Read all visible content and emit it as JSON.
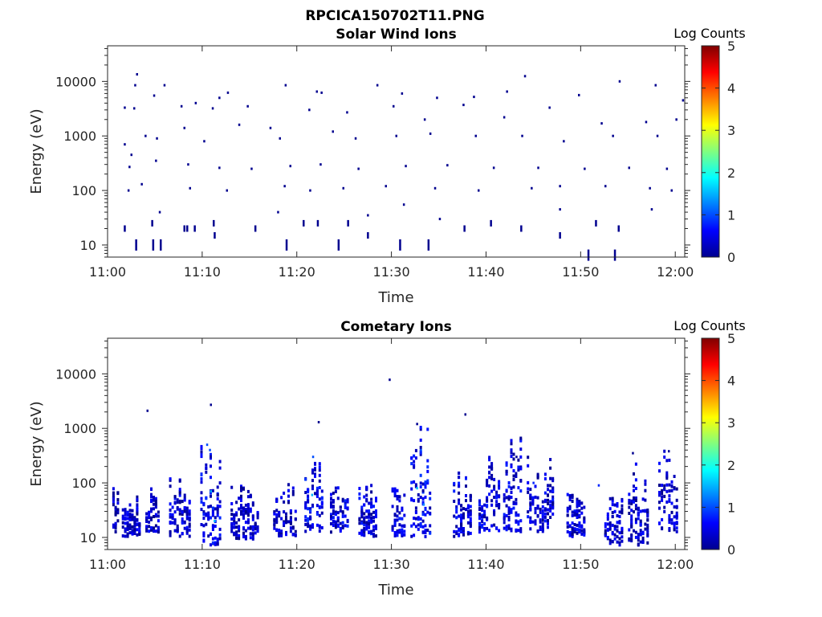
{
  "figure_title": "RPCICA150702T11.PNG",
  "colors": {
    "axis": "#262626",
    "dark_blue": "#00008f",
    "colormap": [
      "#00008f",
      "#0000ff",
      "#0080ff",
      "#00ffff",
      "#80ff80",
      "#ffff00",
      "#ff8000",
      "#ff0000",
      "#800000"
    ]
  },
  "chart_data": [
    {
      "type": "heatmap",
      "title": "Solar Wind Ions",
      "xlabel": "Time",
      "ylabel": "Energy (eV)",
      "x_ticks": [
        "11:00",
        "11:10",
        "11:20",
        "11:30",
        "11:40",
        "11:50",
        "12:00"
      ],
      "x_tick_minutes": [
        0,
        10,
        20,
        30,
        40,
        50,
        60
      ],
      "xlim_minutes": [
        0,
        61
      ],
      "y_scale": "log",
      "y_ticks": [
        "10",
        "100",
        "1000",
        "10000"
      ],
      "y_tick_values": [
        10,
        100,
        1000,
        10000
      ],
      "ylim": [
        6,
        45000
      ],
      "colorbar": {
        "label": "Log Counts",
        "range": [
          0,
          5
        ],
        "ticks": [
          "0",
          "1",
          "2",
          "3",
          "4",
          "5"
        ]
      },
      "points": [
        [
          3.1,
          13500,
          0
        ],
        [
          2.9,
          8500,
          0
        ],
        [
          6.0,
          8500,
          0
        ],
        [
          4.9,
          5500,
          0
        ],
        [
          9.3,
          4000,
          0
        ],
        [
          11.8,
          5000,
          0
        ],
        [
          12.7,
          6200,
          0
        ],
        [
          18.8,
          8500,
          0
        ],
        [
          22.1,
          6500,
          0
        ],
        [
          22.6,
          6200,
          0
        ],
        [
          28.5,
          8500,
          0
        ],
        [
          31.1,
          6000,
          0
        ],
        [
          34.8,
          5000,
          0
        ],
        [
          38.7,
          5200,
          0
        ],
        [
          42.2,
          6500,
          0
        ],
        [
          44.1,
          12500,
          0
        ],
        [
          49.8,
          5600,
          0
        ],
        [
          54.1,
          10000,
          0
        ],
        [
          57.9,
          8500,
          0
        ],
        [
          60.8,
          4500,
          0
        ],
        [
          1.8,
          3300,
          0
        ],
        [
          2.8,
          3200,
          0
        ],
        [
          4.0,
          1000,
          0
        ],
        [
          7.8,
          3500,
          0
        ],
        [
          11.1,
          3200,
          0
        ],
        [
          14.8,
          3500,
          0
        ],
        [
          17.2,
          1400,
          0
        ],
        [
          21.3,
          3000,
          0
        ],
        [
          25.3,
          2700,
          0
        ],
        [
          30.2,
          3500,
          0
        ],
        [
          33.5,
          2000,
          0
        ],
        [
          37.6,
          3700,
          0
        ],
        [
          41.9,
          2200,
          0
        ],
        [
          46.7,
          3300,
          0
        ],
        [
          52.2,
          1700,
          0
        ],
        [
          56.9,
          1800,
          0
        ],
        [
          60.1,
          2000,
          0
        ],
        [
          1.8,
          700,
          0
        ],
        [
          2.5,
          450,
          0
        ],
        [
          5.2,
          900,
          0
        ],
        [
          8.1,
          1400,
          0
        ],
        [
          10.2,
          800,
          0
        ],
        [
          13.9,
          1600,
          0
        ],
        [
          18.2,
          900,
          0
        ],
        [
          23.8,
          1200,
          0
        ],
        [
          26.2,
          900,
          0
        ],
        [
          30.5,
          1000,
          0
        ],
        [
          34.1,
          1100,
          0
        ],
        [
          38.9,
          1000,
          0
        ],
        [
          43.8,
          1000,
          0
        ],
        [
          48.2,
          800,
          0
        ],
        [
          53.4,
          1000,
          0
        ],
        [
          58.1,
          1000,
          0
        ],
        [
          2.3,
          270,
          0
        ],
        [
          5.1,
          350,
          0
        ],
        [
          8.5,
          300,
          0
        ],
        [
          11.8,
          260,
          0
        ],
        [
          15.2,
          250,
          0
        ],
        [
          19.3,
          280,
          0
        ],
        [
          22.5,
          300,
          0
        ],
        [
          26.5,
          250,
          0
        ],
        [
          31.5,
          280,
          0
        ],
        [
          35.9,
          290,
          0
        ],
        [
          40.8,
          260,
          0
        ],
        [
          45.5,
          260,
          0
        ],
        [
          50.4,
          250,
          0
        ],
        [
          55.1,
          260,
          0
        ],
        [
          59.1,
          250,
          0
        ],
        [
          2.2,
          100,
          0
        ],
        [
          3.6,
          130,
          0
        ],
        [
          8.7,
          110,
          0
        ],
        [
          12.6,
          100,
          0
        ],
        [
          18.7,
          120,
          0
        ],
        [
          21.4,
          100,
          0
        ],
        [
          24.9,
          110,
          0
        ],
        [
          29.4,
          120,
          0
        ],
        [
          34.6,
          110,
          0
        ],
        [
          39.2,
          100,
          0
        ],
        [
          44.8,
          110,
          0
        ],
        [
          47.8,
          120,
          0
        ],
        [
          52.6,
          120,
          0
        ],
        [
          57.3,
          110,
          0
        ],
        [
          59.6,
          100,
          0
        ],
        [
          1.8,
          20,
          0
        ],
        [
          4.7,
          25,
          0
        ],
        [
          5.5,
          40,
          0
        ],
        [
          8.1,
          20,
          0
        ],
        [
          8.4,
          20,
          0
        ],
        [
          9.2,
          20,
          0
        ],
        [
          11.2,
          25,
          0
        ],
        [
          15.6,
          20,
          0
        ],
        [
          18.0,
          40,
          0
        ],
        [
          20.7,
          25,
          0
        ],
        [
          22.2,
          25,
          0
        ],
        [
          25.4,
          25,
          0
        ],
        [
          27.5,
          35,
          0
        ],
        [
          31.3,
          55,
          0
        ],
        [
          35.1,
          30,
          0
        ],
        [
          37.7,
          20,
          0
        ],
        [
          40.5,
          25,
          0
        ],
        [
          43.7,
          20,
          0
        ],
        [
          47.8,
          45,
          0
        ],
        [
          51.6,
          25,
          0
        ],
        [
          54.0,
          20,
          0
        ],
        [
          57.5,
          45,
          0
        ],
        [
          3.0,
          10,
          0
        ],
        [
          4.8,
          10,
          0
        ],
        [
          5.6,
          10,
          0
        ],
        [
          11.3,
          15,
          0
        ],
        [
          18.9,
          10,
          0
        ],
        [
          24.4,
          10,
          0
        ],
        [
          27.5,
          15,
          0
        ],
        [
          30.9,
          10,
          0
        ],
        [
          33.9,
          10,
          0
        ],
        [
          47.8,
          15,
          0
        ],
        [
          50.8,
          6.5,
          0
        ],
        [
          53.6,
          6.5,
          0
        ]
      ]
    },
    {
      "type": "heatmap",
      "title": "Cometary Ions",
      "xlabel": "Time",
      "ylabel": "Energy (eV)",
      "x_ticks": [
        "11:00",
        "11:10",
        "11:20",
        "11:30",
        "11:40",
        "11:50",
        "12:00"
      ],
      "x_tick_minutes": [
        0,
        10,
        20,
        30,
        40,
        50,
        60
      ],
      "xlim_minutes": [
        0,
        61
      ],
      "y_scale": "log",
      "y_ticks": [
        "10",
        "100",
        "1000",
        "10000"
      ],
      "y_tick_values": [
        10,
        100,
        1000,
        10000
      ],
      "ylim": [
        6,
        45000
      ],
      "colorbar": {
        "label": "Log Counts",
        "range": [
          0,
          5
        ],
        "ticks": [
          "0",
          "1",
          "2",
          "3",
          "4",
          "5"
        ]
      },
      "points": [
        [
          29.8,
          7800,
          0
        ],
        [
          10.9,
          2700,
          0
        ],
        [
          4.2,
          2100,
          0
        ],
        [
          37.8,
          1800,
          0
        ],
        [
          22.3,
          1300,
          0
        ],
        [
          32.7,
          1200,
          0
        ],
        [
          10.5,
          500,
          1
        ],
        [
          10.8,
          400,
          1
        ],
        [
          21.7,
          300,
          1
        ],
        [
          33.1,
          400,
          1
        ],
        [
          43.2,
          300,
          0
        ],
        [
          55.5,
          350,
          0
        ],
        [
          59.3,
          380,
          0
        ],
        [
          10.9,
          70,
          1.5
        ],
        [
          21.6,
          60,
          1.5
        ],
        [
          32.7,
          80,
          1.6
        ],
        [
          33.4,
          40,
          1.3
        ],
        [
          11.3,
          20,
          1.5
        ],
        [
          45.0,
          100,
          0.8
        ],
        [
          51.9,
          90,
          0.8
        ]
      ],
      "bands": [
        [
          0.5,
          1.2,
          10,
          200,
          0.2
        ],
        [
          1.5,
          3.5,
          10,
          60,
          0.3
        ],
        [
          4.0,
          5.5,
          12,
          80,
          0.3
        ],
        [
          6.5,
          8.8,
          10,
          200,
          0.35
        ],
        [
          9.8,
          12.0,
          7,
          500,
          0.5
        ],
        [
          13.0,
          16.0,
          9,
          90,
          0.3
        ],
        [
          17.5,
          20.0,
          10,
          130,
          0.3
        ],
        [
          20.8,
          22.8,
          12,
          350,
          0.5
        ],
        [
          23.5,
          25.5,
          12,
          90,
          0.4
        ],
        [
          26.5,
          28.5,
          10,
          160,
          0.4
        ],
        [
          30.0,
          31.5,
          10,
          150,
          0.4
        ],
        [
          32.0,
          34.2,
          10,
          1200,
          0.5
        ],
        [
          36.5,
          38.5,
          10,
          200,
          0.4
        ],
        [
          39.2,
          41.5,
          12,
          300,
          0.4
        ],
        [
          41.8,
          43.8,
          12,
          800,
          0.4
        ],
        [
          44.3,
          47.2,
          12,
          350,
          0.35
        ],
        [
          48.5,
          50.5,
          10,
          200,
          0.35
        ],
        [
          52.5,
          54.5,
          7,
          100,
          0.3
        ],
        [
          55.0,
          57.2,
          7,
          250,
          0.3
        ],
        [
          58.2,
          60.3,
          12,
          400,
          0.3
        ]
      ]
    }
  ]
}
